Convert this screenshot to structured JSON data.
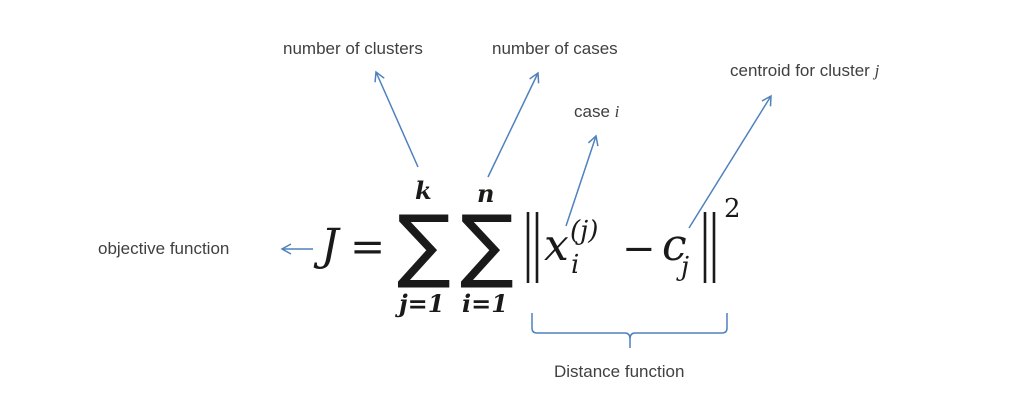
{
  "annotations": {
    "number_of_clusters": "number of clusters",
    "number_of_cases": "number of cases",
    "case_word": "case",
    "case_var": "i",
    "centroid_text": "centroid for cluster",
    "centroid_var": "j",
    "objective_function": "objective function",
    "distance_function": "Distance function"
  },
  "formula": {
    "lhs": "J",
    "equals": "=",
    "outer_sum_upper": "k",
    "outer_sum_lower": "j=1",
    "inner_sum_upper": "n",
    "inner_sum_lower": "i=1",
    "sigma": "∑",
    "x_var": "x",
    "x_subscript": "i",
    "x_superscript": "(j)",
    "minus": "−",
    "c_var": "c",
    "c_subscript": "j",
    "exponent": "2"
  },
  "colors": {
    "arrow": "#4f81bd",
    "text": "#404040",
    "math": "#1a1a1a"
  }
}
